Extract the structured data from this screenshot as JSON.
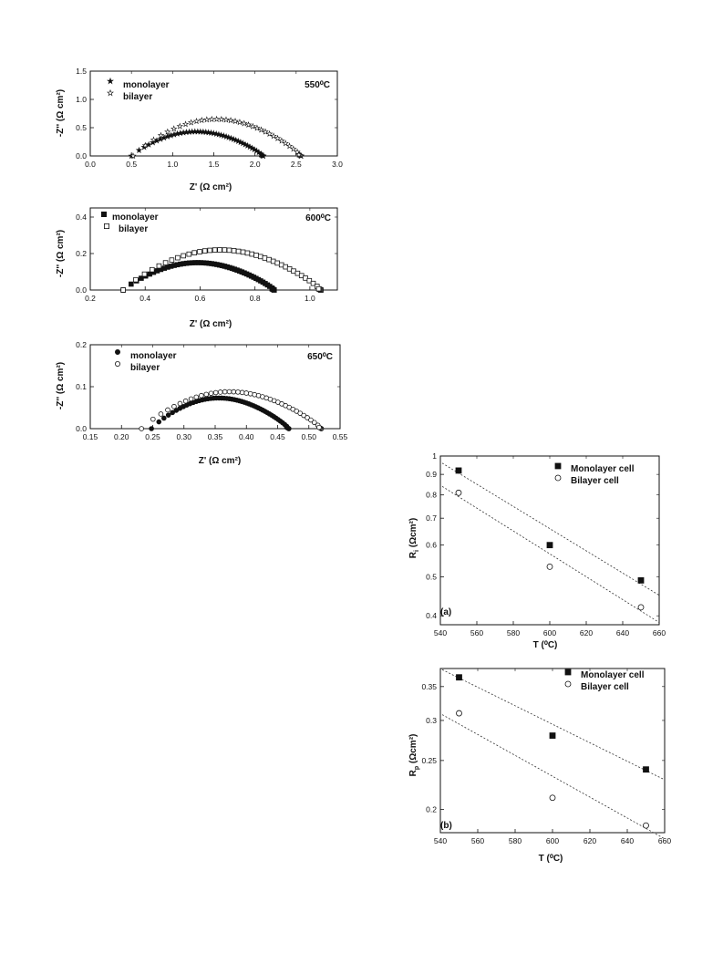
{
  "chart_data": [
    {
      "id": "c1",
      "type": "scatter",
      "xlabel": "Z' (Ω cm²)",
      "ylabel": "-Z'' (Ω cm²)",
      "annotation": "550⁰C",
      "xlim": [
        0.0,
        3.0
      ],
      "ylim": [
        0.0,
        1.5
      ],
      "xticks": [
        "0.0",
        "0.5",
        "1.0",
        "1.5",
        "2.0",
        "2.5",
        "3.0"
      ],
      "yticks": [
        "0.0",
        "0.5",
        "1.0",
        "1.5"
      ],
      "series": [
        {
          "name": "monolayer",
          "marker": "star-filled",
          "arc": [
            0.5,
            2.1,
            0.43,
            0.38
          ],
          "count": 46
        },
        {
          "name": "bilayer",
          "marker": "star-open",
          "arc": [
            0.52,
            2.56,
            0.65,
            0.44
          ],
          "count": 34
        }
      ]
    },
    {
      "id": "c2",
      "type": "scatter",
      "xlabel": "Z' (Ω cm²)",
      "ylabel": "-Z'' (Ω cm²)",
      "annotation": "600⁰C",
      "xlim": [
        0.2,
        1.1
      ],
      "ylim": [
        0.0,
        0.45
      ],
      "xticks": [
        "0.2",
        "0.4",
        "0.6",
        "0.8",
        "1.0"
      ],
      "yticks": [
        "0.0",
        "0.2",
        "0.4"
      ],
      "series": [
        {
          "name": "monolayer",
          "marker": "square-filled",
          "arc": [
            0.32,
            0.87,
            0.15,
            0.44
          ],
          "count": 52
        },
        {
          "name": "bilayer",
          "marker": "square-open",
          "arc": [
            0.32,
            1.04,
            0.22,
            0.52
          ],
          "count": 40
        }
      ]
    },
    {
      "id": "c3",
      "type": "scatter",
      "xlabel": "Z' (Ω cm²)",
      "ylabel": "-Z'' (Ω cm²)",
      "annotation": "650⁰C",
      "xlim": [
        0.15,
        0.55
      ],
      "ylim": [
        0.0,
        0.2
      ],
      "xticks": [
        "0.15",
        "0.20",
        "0.25",
        "0.30",
        "0.35",
        "0.40",
        "0.45",
        "0.50",
        "0.55"
      ],
      "yticks": [
        "0.0",
        "0.1",
        "0.2"
      ],
      "series": [
        {
          "name": "monolayer",
          "marker": "circle-filled",
          "arc": [
            0.248,
            0.468,
            0.073,
            0.56
          ],
          "count": 50
        },
        {
          "name": "bilayer",
          "marker": "circle-open",
          "arc": [
            0.232,
            0.52,
            0.088,
            0.6
          ],
          "count": 40
        }
      ]
    },
    {
      "id": "c4",
      "type": "scatter",
      "panel": "(a)",
      "xlabel": "T (⁰C)",
      "ylabel": "R_i (Ωcm²)",
      "ylabel_main": "R",
      "ylabel_sub": "i",
      "ylabel_rest": " (Ωcm²)",
      "log_y": true,
      "xlim": [
        540,
        660
      ],
      "ylim": [
        0.38,
        1.0
      ],
      "xticks": [
        540,
        560,
        580,
        600,
        620,
        640,
        660
      ],
      "yticks": [
        {
          "v": 1.0,
          "t": "1"
        },
        {
          "v": 0.9,
          "t": "0.9"
        },
        {
          "v": 0.8,
          "t": "0.8"
        },
        {
          "v": 0.7,
          "t": "0.7"
        },
        {
          "v": 0.6,
          "t": "0.6"
        },
        {
          "v": 0.5,
          "t": "0.5"
        },
        {
          "v": 0.4,
          "t": "0.4"
        }
      ],
      "legend_position": "top-right",
      "series": [
        {
          "name": "Monolayer cell",
          "marker": "square-filled",
          "x": [
            550,
            600,
            650
          ],
          "y": [
            0.92,
            0.6,
            0.49
          ],
          "fit": [
            [
              541,
              0.96
            ],
            [
              660,
              0.45
            ]
          ]
        },
        {
          "name": "Bilayer cell",
          "marker": "circle-open",
          "x": [
            550,
            600,
            650
          ],
          "y": [
            0.81,
            0.53,
            0.42
          ],
          "fit": [
            [
              541,
              0.84
            ],
            [
              660,
              0.385
            ]
          ]
        }
      ]
    },
    {
      "id": "c5",
      "type": "scatter",
      "panel": "(b)",
      "xlabel": "T (⁰C)",
      "ylabel": "R_p (Ωcm²)",
      "ylabel_main": "R",
      "ylabel_sub": "p",
      "ylabel_rest": " (Ωcm²)",
      "log_y": true,
      "xlim": [
        540,
        660
      ],
      "ylim": [
        0.18,
        0.38
      ],
      "xticks": [
        540,
        560,
        580,
        600,
        620,
        640,
        660
      ],
      "yticks": [
        {
          "v": 0.35,
          "t": "0.35"
        },
        {
          "v": 0.3,
          "t": "0.3"
        },
        {
          "v": 0.25,
          "t": "0.25"
        },
        {
          "v": 0.2,
          "t": "0.2"
        }
      ],
      "legend_position": "top-right",
      "series": [
        {
          "name": "Monolayer cell",
          "marker": "square-filled",
          "x": [
            550,
            600,
            650
          ],
          "y": [
            0.365,
            0.28,
            0.24
          ],
          "fit": [
            [
              541,
              0.378
            ],
            [
              660,
              0.229
            ]
          ]
        },
        {
          "name": "Bilayer cell",
          "marker": "circle-open",
          "x": [
            550,
            600,
            650
          ],
          "y": [
            0.31,
            0.211,
            0.186
          ],
          "fit": [
            [
              541,
              0.308
            ],
            [
              660,
              0.175
            ]
          ]
        }
      ]
    }
  ]
}
